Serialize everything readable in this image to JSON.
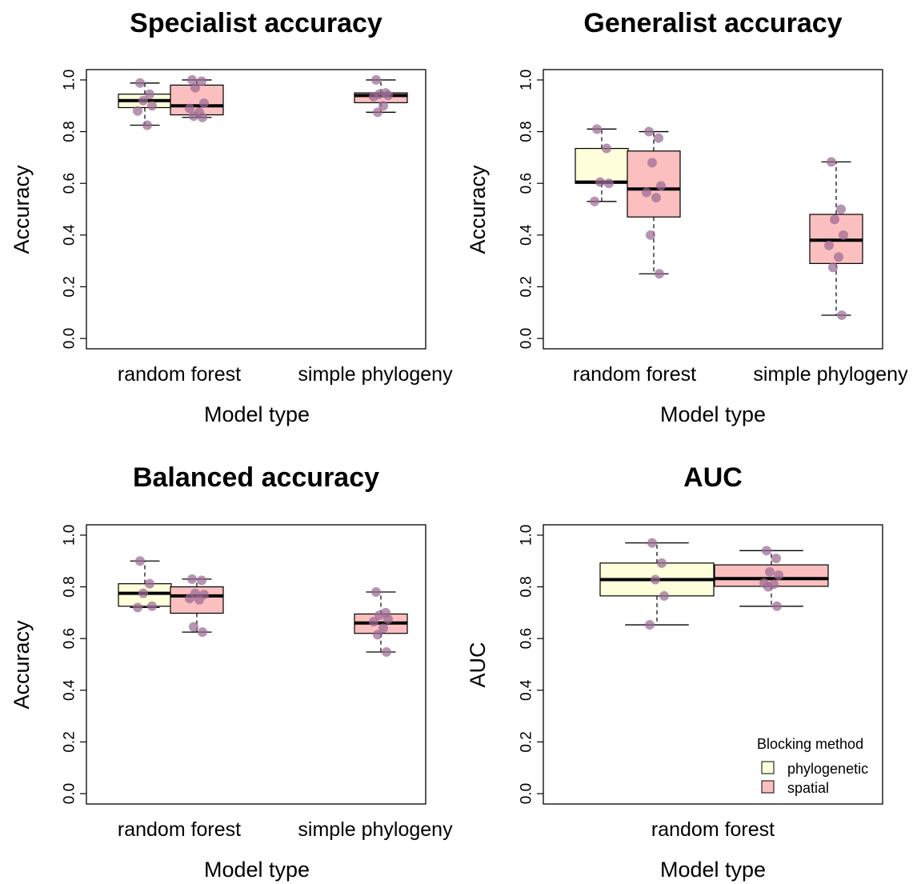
{
  "colors": {
    "phylogenetic": "#ffffdc",
    "spatial": "#fbbfbf",
    "point": "#9b6b94",
    "median": "#000000",
    "frame": "#000000"
  },
  "legend": {
    "title": "Blocking method",
    "items": [
      {
        "label": "phylogenetic",
        "key": "phylogenetic"
      },
      {
        "label": "spatial",
        "key": "spatial"
      }
    ]
  },
  "chart_data": [
    {
      "type": "boxplot",
      "title": "Specialist accuracy",
      "xlabel": "Model type",
      "ylabel": "Accuracy",
      "ylim": [
        0,
        1.0
      ],
      "yticks": [
        "0.0",
        "0.2",
        "0.4",
        "0.6",
        "0.8",
        "1.0"
      ],
      "categories": [
        "random forest",
        "simple phylogeny"
      ],
      "boxes": [
        {
          "category": "random forest",
          "group": "phylogenetic",
          "whisker_low": 0.825,
          "q1": 0.893,
          "median": 0.92,
          "q3": 0.945,
          "whisker_high": 0.988,
          "points": [
            0.988,
            0.945,
            0.92,
            0.9,
            0.88,
            0.825
          ]
        },
        {
          "category": "random forest",
          "group": "spatial",
          "whisker_low": 0.855,
          "q1": 0.865,
          "median": 0.9,
          "q3": 0.98,
          "whisker_high": 1.0,
          "points": [
            1.0,
            0.995,
            0.97,
            0.91,
            0.89,
            0.875,
            0.86,
            0.855
          ]
        },
        {
          "category": "simple phylogeny",
          "group": "spatial",
          "whisker_low": 0.875,
          "q1": 0.912,
          "median": 0.94,
          "q3": 0.95,
          "whisker_high": 1.0,
          "points": [
            1.0,
            0.95,
            0.945,
            0.94,
            0.935,
            0.9,
            0.875
          ]
        }
      ]
    },
    {
      "type": "boxplot",
      "title": "Generalist accuracy",
      "xlabel": "Model type",
      "ylabel": "Accuracy",
      "ylim": [
        0,
        1.0
      ],
      "yticks": [
        "0.0",
        "0.2",
        "0.4",
        "0.6",
        "0.8",
        "1.0"
      ],
      "categories": [
        "random forest",
        "simple phylogeny"
      ],
      "boxes": [
        {
          "category": "random forest",
          "group": "phylogenetic",
          "whisker_low": 0.53,
          "q1": 0.6,
          "median": 0.605,
          "q3": 0.735,
          "whisker_high": 0.81,
          "points": [
            0.81,
            0.735,
            0.605,
            0.6,
            0.53
          ]
        },
        {
          "category": "random forest",
          "group": "spatial",
          "whisker_low": 0.25,
          "q1": 0.47,
          "median": 0.578,
          "q3": 0.725,
          "whisker_high": 0.8,
          "points": [
            0.8,
            0.775,
            0.68,
            0.59,
            0.565,
            0.545,
            0.4,
            0.25
          ]
        },
        {
          "category": "simple phylogeny",
          "group": "spatial",
          "whisker_low": 0.09,
          "q1": 0.29,
          "median": 0.38,
          "q3": 0.48,
          "whisker_high": 0.683,
          "points": [
            0.683,
            0.5,
            0.46,
            0.4,
            0.36,
            0.315,
            0.275,
            0.09
          ]
        }
      ]
    },
    {
      "type": "boxplot",
      "title": "Balanced accuracy",
      "xlabel": "Model type",
      "ylabel": "Accuracy",
      "ylim": [
        0,
        1.0
      ],
      "yticks": [
        "0.0",
        "0.2",
        "0.4",
        "0.6",
        "0.8",
        "1.0"
      ],
      "categories": [
        "random forest",
        "simple phylogeny"
      ],
      "boxes": [
        {
          "category": "random forest",
          "group": "phylogenetic",
          "whisker_low": 0.72,
          "q1": 0.725,
          "median": 0.775,
          "q3": 0.812,
          "whisker_high": 0.9,
          "points": [
            0.9,
            0.812,
            0.775,
            0.725,
            0.72
          ]
        },
        {
          "category": "random forest",
          "group": "spatial",
          "whisker_low": 0.625,
          "q1": 0.698,
          "median": 0.765,
          "q3": 0.8,
          "whisker_high": 0.83,
          "points": [
            0.83,
            0.825,
            0.775,
            0.77,
            0.755,
            0.75,
            0.645,
            0.625
          ]
        },
        {
          "category": "simple phylogeny",
          "group": "spatial",
          "whisker_low": 0.548,
          "q1": 0.62,
          "median": 0.66,
          "q3": 0.695,
          "whisker_high": 0.78,
          "points": [
            0.78,
            0.7,
            0.69,
            0.675,
            0.665,
            0.64,
            0.615,
            0.548
          ]
        }
      ]
    },
    {
      "type": "boxplot",
      "title": "AUC",
      "xlabel": "Model type",
      "ylabel": "AUC",
      "ylim": [
        0,
        1.0
      ],
      "yticks": [
        "0.0",
        "0.2",
        "0.4",
        "0.6",
        "0.8",
        "1.0"
      ],
      "categories": [
        "random forest"
      ],
      "boxes": [
        {
          "category": "random forest",
          "group": "phylogenetic",
          "whisker_low": 0.653,
          "q1": 0.765,
          "median": 0.828,
          "q3": 0.892,
          "whisker_high": 0.97,
          "points": [
            0.97,
            0.892,
            0.828,
            0.765,
            0.653
          ]
        },
        {
          "category": "random forest",
          "group": "spatial",
          "whisker_low": 0.725,
          "q1": 0.802,
          "median": 0.832,
          "q3": 0.885,
          "whisker_high": 0.94,
          "points": [
            0.94,
            0.91,
            0.858,
            0.845,
            0.815,
            0.81,
            0.8,
            0.725
          ]
        }
      ],
      "show_legend": true
    }
  ]
}
